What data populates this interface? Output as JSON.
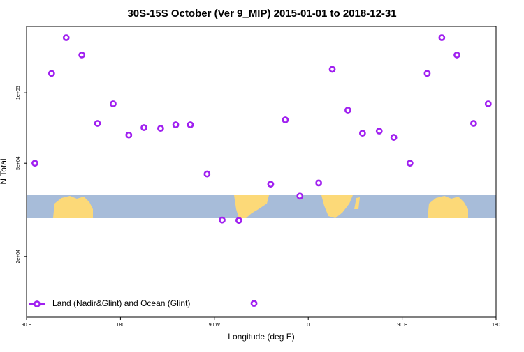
{
  "chart_data": {
    "type": "scatter",
    "title": "30S-15S October (Ver 9_MIP)   2015-01-01 to 2018-12-31",
    "x_label": "Longitude (deg E)",
    "y_label": "N Total",
    "y_scale": "log",
    "legend": "lower left",
    "xlim": [
      90,
      540
    ],
    "xticks": [
      {
        "value": 90,
        "label": "90 E"
      },
      {
        "value": 180,
        "label": "180"
      },
      {
        "value": 270,
        "label": "90 W"
      },
      {
        "value": 360,
        "label": "0"
      },
      {
        "value": 450,
        "label": "90 E"
      },
      {
        "value": 540,
        "label": "180"
      }
    ],
    "ylim": [
      11000,
      192000
    ],
    "yticks": [
      {
        "value": 20000,
        "label": "2e+04"
      },
      {
        "value": 50000,
        "label": "5e+04"
      },
      {
        "value": 100000,
        "label": "1e+05"
      }
    ],
    "series": [
      {
        "name": "Land (Nadir&Glint) and Ocean (Glint)",
        "color": "#a020f0",
        "x": [
          98,
          114,
          128,
          143,
          158,
          173,
          188,
          202.5,
          218.5,
          233,
          247,
          263,
          277.5,
          293.5,
          308,
          324,
          338,
          352,
          370,
          383,
          398,
          412,
          428,
          442,
          457.5,
          474,
          488,
          502.5,
          518.5,
          532.5
        ],
        "values": [
          50000,
          121000,
          172000,
          145000,
          74000,
          89700,
          66000,
          71000,
          70500,
          73000,
          73000,
          45000,
          28600,
          28500,
          12600,
          40700,
          76600,
          36200,
          41200,
          126000,
          84300,
          67200,
          68600,
          64500,
          50000,
          121000,
          172000,
          145000,
          74000,
          89700
        ]
      }
    ]
  }
}
